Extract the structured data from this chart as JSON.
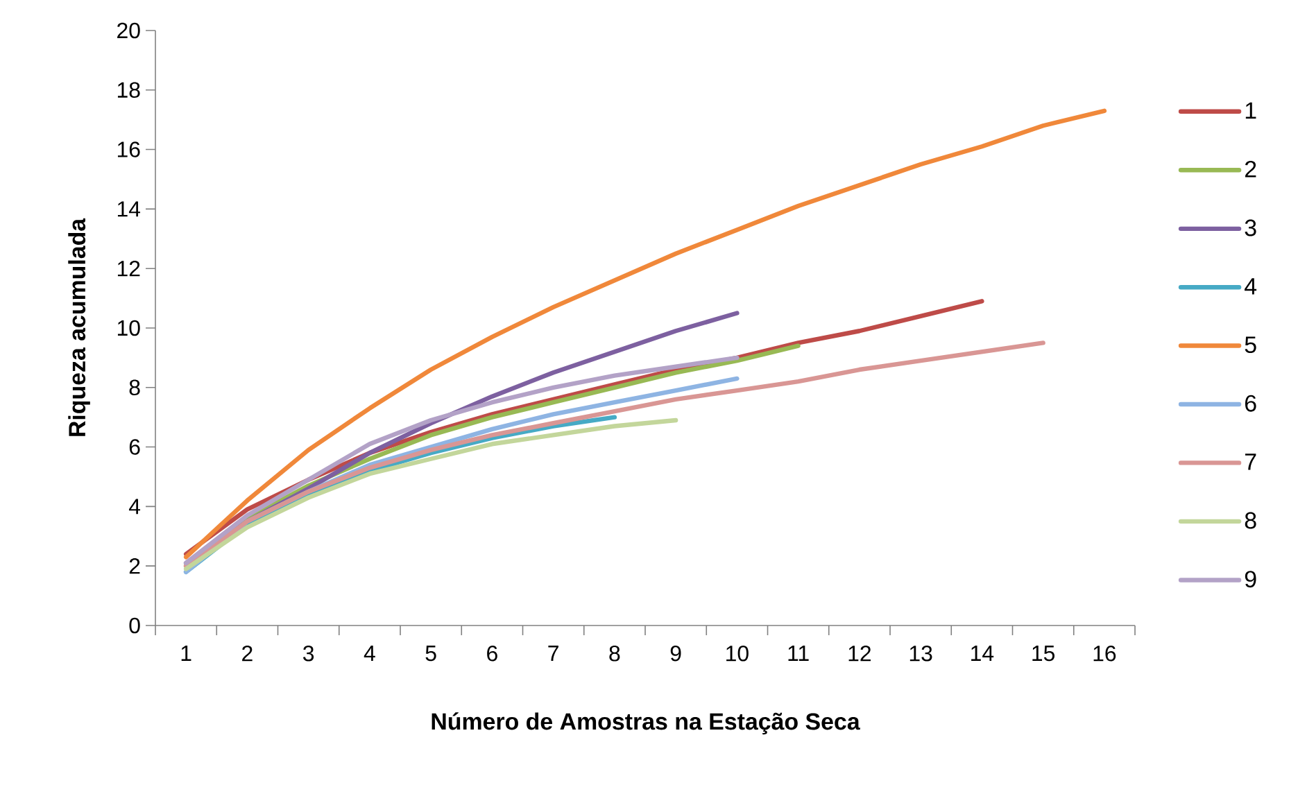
{
  "chart_data": {
    "type": "line",
    "xlabel": "Número de Amostras na Estação Seca",
    "ylabel": "Riqueza acumulada",
    "categories": [
      "1",
      "2",
      "3",
      "4",
      "5",
      "6",
      "7",
      "8",
      "9",
      "10",
      "11",
      "12",
      "13",
      "14",
      "15",
      "16"
    ],
    "ylim": [
      0,
      20
    ],
    "yticks": [
      0,
      2,
      4,
      6,
      8,
      10,
      12,
      14,
      16,
      18,
      20
    ],
    "grid": false,
    "legend": "right",
    "marker": "none",
    "line_style": "solid",
    "series": [
      {
        "name": "1",
        "color": "#be4b48",
        "values": [
          2.4,
          3.9,
          4.9,
          5.8,
          6.5,
          7.1,
          7.6,
          8.1,
          8.6,
          9.0,
          9.5,
          9.9,
          10.4,
          10.9,
          null,
          null
        ]
      },
      {
        "name": "2",
        "color": "#98b954",
        "values": [
          2.0,
          3.6,
          4.7,
          5.6,
          6.4,
          7.0,
          7.5,
          8.0,
          8.5,
          8.9,
          9.4,
          null,
          null,
          null,
          null,
          null
        ]
      },
      {
        "name": "3",
        "color": "#7d60a0",
        "values": [
          2.1,
          3.5,
          4.6,
          5.8,
          6.8,
          7.7,
          8.5,
          9.2,
          9.9,
          10.5,
          null,
          null,
          null,
          null,
          null,
          null
        ]
      },
      {
        "name": "4",
        "color": "#46aac5",
        "values": [
          1.8,
          3.4,
          4.4,
          5.2,
          5.8,
          6.3,
          6.7,
          7.0,
          null,
          null,
          null,
          null,
          null,
          null,
          null,
          null
        ]
      },
      {
        "name": "5",
        "color": "#f0883a",
        "values": [
          2.3,
          4.2,
          5.9,
          7.3,
          8.6,
          9.7,
          10.7,
          11.6,
          12.5,
          13.3,
          14.1,
          14.8,
          15.5,
          16.1,
          16.8,
          17.3
        ]
      },
      {
        "name": "6",
        "color": "#8eb4e3",
        "values": [
          1.8,
          3.5,
          4.5,
          5.4,
          6.0,
          6.6,
          7.1,
          7.5,
          7.9,
          8.3,
          null,
          null,
          null,
          null,
          null,
          null
        ]
      },
      {
        "name": "7",
        "color": "#d99694",
        "values": [
          2.0,
          3.5,
          4.5,
          5.3,
          5.9,
          6.4,
          6.8,
          7.2,
          7.6,
          7.9,
          8.2,
          8.6,
          8.9,
          9.2,
          9.5,
          null
        ]
      },
      {
        "name": "8",
        "color": "#c3d69b",
        "values": [
          1.9,
          3.3,
          4.3,
          5.1,
          5.6,
          6.1,
          6.4,
          6.7,
          6.9,
          null,
          null,
          null,
          null,
          null,
          null,
          null
        ]
      },
      {
        "name": "9",
        "color": "#b3a2c7",
        "values": [
          2.1,
          3.7,
          4.9,
          6.1,
          6.9,
          7.5,
          8.0,
          8.4,
          8.7,
          9.0,
          null,
          null,
          null,
          null,
          null,
          null
        ]
      }
    ]
  }
}
